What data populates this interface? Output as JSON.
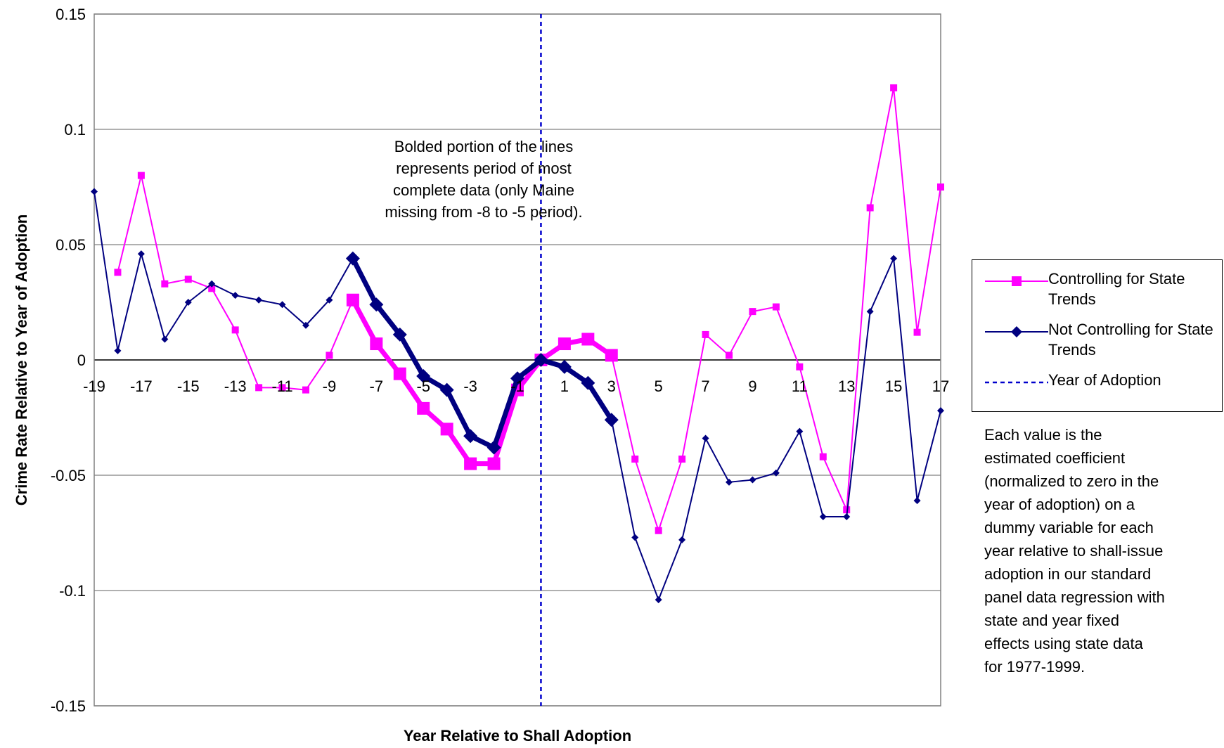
{
  "chart_data": {
    "type": "line",
    "xlabel": "Year Relative to Shall Adoption",
    "ylabel": "Crime Rate Relative to Year of Adoption",
    "ylim": [
      -0.15,
      0.15
    ],
    "xlim": [
      -19,
      17
    ],
    "y_ticks": [
      "0.15",
      "0.1",
      "0.05",
      "0",
      "-0.05",
      "-0.1",
      "-0.15"
    ],
    "x_ticks": [
      "-19",
      "-17",
      "-15",
      "-13",
      "-11",
      "-9",
      "-7",
      "-5",
      "-3",
      "-1",
      "1",
      "3",
      "5",
      "7",
      "9",
      "11",
      "13",
      "15",
      "17"
    ],
    "grid": "horizontal",
    "legend_position": "right",
    "x": [
      -19,
      -18,
      -17,
      -16,
      -15,
      -14,
      -13,
      -12,
      -11,
      -10,
      -9,
      -8,
      -7,
      -6,
      -5,
      -4,
      -3,
      -2,
      -1,
      0,
      1,
      2,
      3,
      4,
      5,
      6,
      7,
      8,
      9,
      10,
      11,
      12,
      13,
      14,
      15,
      16,
      17
    ],
    "bold_range": [
      -8,
      3
    ],
    "series": [
      {
        "name": "Controlling for State Trends",
        "color": "#ff00ff",
        "marker": "square",
        "values": [
          null,
          0.038,
          0.08,
          0.033,
          0.035,
          0.031,
          0.013,
          -0.012,
          -0.012,
          -0.013,
          0.002,
          0.026,
          0.007,
          -0.006,
          -0.021,
          -0.03,
          -0.045,
          -0.045,
          -0.013,
          0.0,
          0.007,
          0.009,
          0.002,
          -0.043,
          -0.074,
          -0.043,
          0.011,
          0.002,
          0.021,
          0.023,
          -0.003,
          -0.042,
          -0.065,
          0.066,
          0.118,
          0.012,
          0.075
        ]
      },
      {
        "name": "Not Controlling for State Trends",
        "color": "#000080",
        "marker": "diamond",
        "values": [
          0.073,
          0.004,
          0.046,
          0.009,
          0.025,
          0.033,
          0.028,
          0.026,
          0.024,
          0.015,
          0.026,
          0.044,
          0.024,
          0.011,
          -0.007,
          -0.013,
          -0.033,
          -0.038,
          -0.008,
          0.0,
          -0.003,
          -0.01,
          -0.026,
          -0.077,
          -0.104,
          -0.078,
          -0.034,
          -0.053,
          -0.052,
          -0.049,
          -0.031,
          -0.068,
          -0.068,
          0.021,
          0.044,
          -0.061,
          -0.022
        ]
      }
    ],
    "reference_line": {
      "name": "Year of Adoption",
      "x": 0,
      "color": "#0000cc",
      "style": "dashed"
    },
    "annotation_lines": [
      "Bolded portion of the lines",
      "represents period of most",
      "complete data (only Maine",
      "missing from -8 to -5 period)."
    ]
  },
  "legend": {
    "items": [
      {
        "label": "Controlling for State Trends"
      },
      {
        "label": "Not Controlling for State Trends"
      },
      {
        "label": "Year of Adoption"
      }
    ]
  },
  "note": {
    "lines": [
      "Each value is the",
      "estimated coefficient",
      "(normalized to zero in the",
      "year of adoption) on a",
      "dummy variable for each",
      "year relative to shall-issue",
      "adoption in our standard",
      "panel data regression with",
      "state and year fixed",
      "effects using state data",
      "for 1977-1999."
    ]
  }
}
